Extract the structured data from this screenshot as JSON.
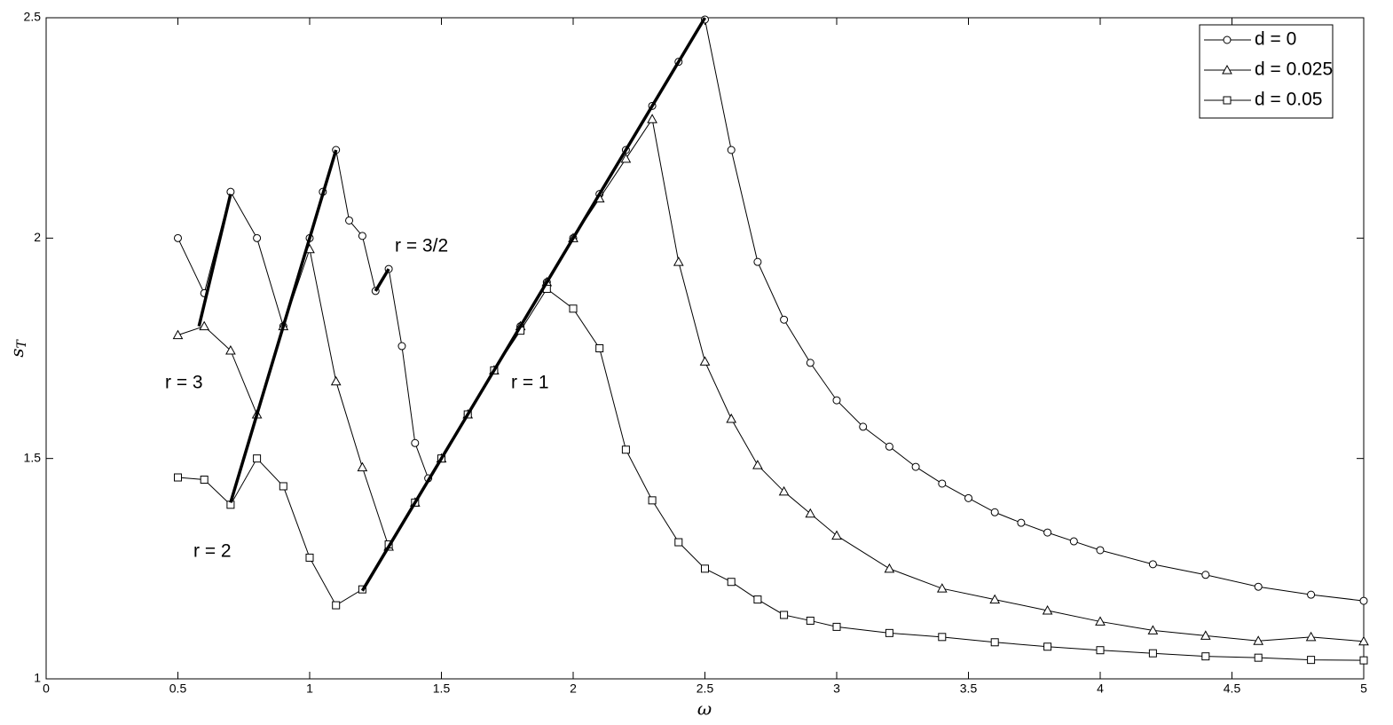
{
  "chart_data": {
    "type": "line",
    "x_label": "ω",
    "y_label": "s",
    "y_label_sub": "T",
    "xlim": [
      0,
      5
    ],
    "ylim": [
      1,
      2.5
    ],
    "xticks": [
      0,
      0.5,
      1,
      1.5,
      2,
      2.5,
      3,
      3.5,
      4,
      4.5,
      5
    ],
    "yticks": [
      1,
      1.5,
      2,
      2.5
    ],
    "legend_position": "upper right",
    "series": [
      {
        "name": "d = 0",
        "marker": "circle",
        "color": "#000000",
        "x": [
          0.5,
          0.6,
          0.7,
          0.8,
          0.9,
          1.0,
          1.05,
          1.1,
          1.15,
          1.2,
          1.25,
          1.3,
          1.35,
          1.4,
          1.45,
          1.5,
          1.6,
          1.7,
          1.8,
          1.9,
          2.0,
          2.1,
          2.2,
          2.3,
          2.4,
          2.5,
          2.6,
          2.7,
          2.8,
          2.9,
          3.0,
          3.1,
          3.2,
          3.3,
          3.4,
          3.5,
          3.6,
          3.7,
          3.8,
          3.9,
          4.0,
          4.2,
          4.4,
          4.6,
          4.8,
          5.0
        ],
        "values": [
          2.0,
          1.875,
          2.105,
          2.0,
          1.8,
          2.0,
          2.105,
          2.2,
          2.04,
          2.005,
          1.88,
          1.93,
          1.755,
          1.535,
          1.455,
          1.5,
          1.6,
          1.7,
          1.8,
          1.9,
          2.0,
          2.1,
          2.2,
          2.3,
          2.4,
          2.496,
          2.2,
          1.946,
          1.815,
          1.717,
          1.632,
          1.572,
          1.527,
          1.481,
          1.443,
          1.41,
          1.378,
          1.354,
          1.332,
          1.312,
          1.292,
          1.26,
          1.236,
          1.209,
          1.191,
          1.177
        ]
      },
      {
        "name": "d = 0.025",
        "marker": "triangle",
        "color": "#000000",
        "x": [
          0.5,
          0.6,
          0.7,
          0.8,
          0.9,
          1.0,
          1.1,
          1.2,
          1.3,
          1.4,
          1.5,
          1.6,
          1.7,
          1.8,
          1.9,
          2.0,
          2.1,
          2.2,
          2.3,
          2.4,
          2.5,
          2.6,
          2.7,
          2.8,
          2.9,
          3.0,
          3.2,
          3.4,
          3.6,
          3.8,
          4.0,
          4.2,
          4.4,
          4.6,
          4.8,
          5.0
        ],
        "values": [
          1.78,
          1.8,
          1.745,
          1.6,
          1.8,
          1.975,
          1.675,
          1.48,
          1.3,
          1.4,
          1.5,
          1.6,
          1.7,
          1.8,
          1.9,
          2.0,
          2.09,
          2.18,
          2.27,
          1.946,
          1.72,
          1.59,
          1.485,
          1.425,
          1.375,
          1.325,
          1.25,
          1.205,
          1.18,
          1.155,
          1.13,
          1.11,
          1.098,
          1.086,
          1.095,
          1.085
        ]
      },
      {
        "name": "d = 0.05",
        "marker": "square",
        "color": "#000000",
        "x": [
          0.5,
          0.6,
          0.7,
          0.8,
          0.9,
          1.0,
          1.1,
          1.2,
          1.3,
          1.4,
          1.5,
          1.6,
          1.7,
          1.8,
          1.9,
          2.0,
          2.1,
          2.2,
          2.3,
          2.4,
          2.5,
          2.6,
          2.7,
          2.8,
          2.9,
          3.0,
          3.2,
          3.4,
          3.6,
          3.8,
          4.0,
          4.2,
          4.4,
          4.6,
          4.8,
          5.0
        ],
        "values": [
          1.457,
          1.452,
          1.395,
          1.5,
          1.437,
          1.275,
          1.167,
          1.203,
          1.305,
          1.4,
          1.5,
          1.6,
          1.7,
          1.79,
          1.885,
          1.84,
          1.75,
          1.52,
          1.405,
          1.31,
          1.25,
          1.22,
          1.18,
          1.145,
          1.132,
          1.118,
          1.104,
          1.095,
          1.083,
          1.073,
          1.065,
          1.058,
          1.051,
          1.048,
          1.043,
          1.042
        ]
      }
    ],
    "reference_lines": [
      {
        "label": "r = 3",
        "x": [
          0.58,
          0.7
        ],
        "values": [
          1.8,
          2.1
        ]
      },
      {
        "label": "r = 2",
        "x": [
          0.7,
          1.1
        ],
        "values": [
          1.4,
          2.2
        ]
      },
      {
        "label": "r = 3/2",
        "x": [
          1.25,
          1.3
        ],
        "values": [
          1.88,
          1.93
        ]
      },
      {
        "label": "r = 1",
        "x": [
          1.2,
          2.5
        ],
        "values": [
          1.2,
          2.5
        ]
      }
    ]
  }
}
